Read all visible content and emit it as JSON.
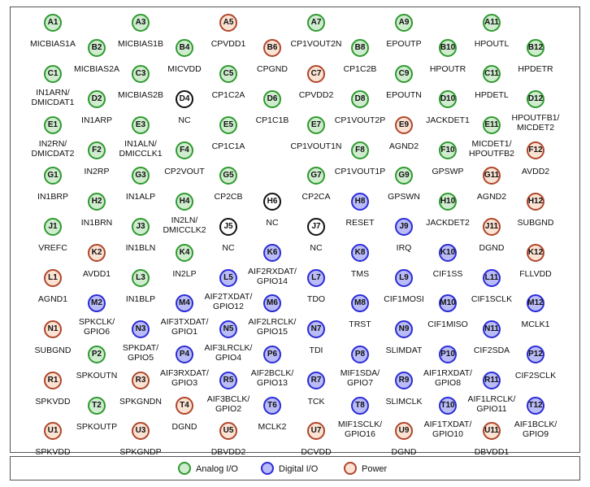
{
  "colors": {
    "analog": "#2e9a2e",
    "digital": "#2b2bd8",
    "power": "#b0452a",
    "nc": "#111111"
  },
  "legend": {
    "analog": "Analog I/O",
    "digital": "Digital I/O",
    "power": "Power"
  },
  "rows": [
    {
      "balls": [
        {
          "id": "A1",
          "type": "analog",
          "label": "MICBIAS1A"
        },
        {
          "id": "A3",
          "type": "analog",
          "label": "MICBIAS1B"
        },
        {
          "id": "A5",
          "type": "power",
          "label": "CPVDD1"
        },
        {
          "id": "A7",
          "type": "analog",
          "label": "CP1VOUT2N"
        },
        {
          "id": "A9",
          "type": "analog",
          "label": "EPOUTP"
        },
        {
          "id": "A11",
          "type": "analog",
          "label": "HPOUTL"
        }
      ]
    },
    {
      "balls": [
        {
          "id": "B2",
          "type": "analog",
          "label": "MICBIAS2A"
        },
        {
          "id": "B4",
          "type": "analog",
          "label": "MICVDD"
        },
        {
          "id": "B6",
          "type": "power",
          "label": "CPGND"
        },
        {
          "id": "B8",
          "type": "analog",
          "label": "CP1C2B"
        },
        {
          "id": "B10",
          "type": "analog",
          "label": "HPOUTR"
        },
        {
          "id": "B12",
          "type": "analog",
          "label": "HPDETR"
        }
      ]
    },
    {
      "balls": [
        {
          "id": "C1",
          "type": "analog",
          "label": "IN1ARN/\nDMICDAT1"
        },
        {
          "id": "C3",
          "type": "analog",
          "label": "MICBIAS2B"
        },
        {
          "id": "C5",
          "type": "analog",
          "label": "CP1C2A"
        },
        {
          "id": "C7",
          "type": "power",
          "label": "CPVDD2"
        },
        {
          "id": "C9",
          "type": "analog",
          "label": "EPOUTN"
        },
        {
          "id": "C11",
          "type": "analog",
          "label": "HPDETL"
        }
      ]
    },
    {
      "balls": [
        {
          "id": "D2",
          "type": "analog",
          "label": "IN1ARP"
        },
        {
          "id": "D4",
          "type": "nc",
          "label": "NC"
        },
        {
          "id": "D6",
          "type": "analog",
          "label": "CP1C1B"
        },
        {
          "id": "D8",
          "type": "analog",
          "label": "CP1VOUT2P"
        },
        {
          "id": "D10",
          "type": "analog",
          "label": "JACKDET1"
        },
        {
          "id": "D12",
          "type": "analog",
          "label": "HPOUTFB1/\nMICDET2"
        }
      ]
    },
    {
      "balls": [
        {
          "id": "E1",
          "type": "analog",
          "label": "IN2RN/\nDMICDAT2"
        },
        {
          "id": "E3",
          "type": "analog",
          "label": "IN1ALN/\nDMICCLK1"
        },
        {
          "id": "E5",
          "type": "analog",
          "label": "CP1C1A"
        },
        {
          "id": "E7",
          "type": "analog",
          "label": "CP1VOUT1N"
        },
        {
          "id": "E9",
          "type": "power",
          "label": "AGND2"
        },
        {
          "id": "E11",
          "type": "analog",
          "label": "MICDET1/\nHPOUTFB2"
        }
      ]
    },
    {
      "balls": [
        {
          "id": "F2",
          "type": "analog",
          "label": "IN2RP"
        },
        {
          "id": "F4",
          "type": "analog",
          "label": "CP2VOUT"
        },
        {
          "id": "F8",
          "type": "analog",
          "label": "CP1VOUT1P"
        },
        {
          "id": "F10",
          "type": "analog",
          "label": "GPSWP"
        },
        {
          "id": "F12",
          "type": "power",
          "label": "AVDD2"
        }
      ]
    },
    {
      "balls": [
        {
          "id": "G1",
          "type": "analog",
          "label": "IN1BRP"
        },
        {
          "id": "G3",
          "type": "analog",
          "label": "IN1ALP"
        },
        {
          "id": "G5",
          "type": "analog",
          "label": "CP2CB"
        },
        {
          "id": "G7",
          "type": "analog",
          "label": "CP2CA"
        },
        {
          "id": "G9",
          "type": "analog",
          "label": "GPSWN"
        },
        {
          "id": "G11",
          "type": "power",
          "label": "AGND2"
        }
      ]
    },
    {
      "balls": [
        {
          "id": "H2",
          "type": "analog",
          "label": "IN1BRN"
        },
        {
          "id": "H4",
          "type": "analog",
          "label": "IN2LN/\nDMICCLK2"
        },
        {
          "id": "H6",
          "type": "nc",
          "label": "NC"
        },
        {
          "id": "H8",
          "type": "digital",
          "label": "RESET"
        },
        {
          "id": "H10",
          "type": "analog",
          "label": "JACKDET2"
        },
        {
          "id": "H12",
          "type": "power",
          "label": "SUBGND"
        }
      ]
    },
    {
      "balls": [
        {
          "id": "J1",
          "type": "analog",
          "label": "VREFC"
        },
        {
          "id": "J3",
          "type": "analog",
          "label": "IN1BLN"
        },
        {
          "id": "J5",
          "type": "nc",
          "label": "NC"
        },
        {
          "id": "J7",
          "type": "nc",
          "label": "NC"
        },
        {
          "id": "J9",
          "type": "digital",
          "label": "IRQ"
        },
        {
          "id": "J11",
          "type": "power",
          "label": "DGND"
        }
      ]
    },
    {
      "balls": [
        {
          "id": "K2",
          "type": "power",
          "label": "AVDD1"
        },
        {
          "id": "K4",
          "type": "analog",
          "label": "IN2LP"
        },
        {
          "id": "K6",
          "type": "digital",
          "label": "AIF2RXDAT/\nGPIO14"
        },
        {
          "id": "K8",
          "type": "digital",
          "label": "TMS"
        },
        {
          "id": "K10",
          "type": "digital",
          "label": "CIF1SS"
        },
        {
          "id": "K12",
          "type": "power",
          "label": "FLLVDD"
        }
      ]
    },
    {
      "balls": [
        {
          "id": "L1",
          "type": "power",
          "label": "AGND1"
        },
        {
          "id": "L3",
          "type": "analog",
          "label": "IN1BLP"
        },
        {
          "id": "L5",
          "type": "digital",
          "label": "AIF2TXDAT/\nGPIO12"
        },
        {
          "id": "L7",
          "type": "digital",
          "label": "TDO"
        },
        {
          "id": "L9",
          "type": "digital",
          "label": "CIF1MOSI"
        },
        {
          "id": "L11",
          "type": "digital",
          "label": "CIF1SCLK"
        }
      ]
    },
    {
      "balls": [
        {
          "id": "M2",
          "type": "digital",
          "label": "SPKCLK/\nGPIO6"
        },
        {
          "id": "M4",
          "type": "digital",
          "label": "AIF3TXDAT/\nGPIO1"
        },
        {
          "id": "M6",
          "type": "digital",
          "label": "AIF2LRCLK/\nGPIO15"
        },
        {
          "id": "M8",
          "type": "digital",
          "label": "TRST"
        },
        {
          "id": "M10",
          "type": "digital",
          "label": "CIF1MISO"
        },
        {
          "id": "M12",
          "type": "digital",
          "label": "MCLK1"
        }
      ]
    },
    {
      "balls": [
        {
          "id": "N1",
          "type": "power",
          "label": "SUBGND"
        },
        {
          "id": "N3",
          "type": "digital",
          "label": "SPKDAT/\nGPIO5"
        },
        {
          "id": "N5",
          "type": "digital",
          "label": "AIF3LRCLK/\nGPIO4"
        },
        {
          "id": "N7",
          "type": "digital",
          "label": "TDI"
        },
        {
          "id": "N9",
          "type": "digital",
          "label": "SLIMDAT"
        },
        {
          "id": "N11",
          "type": "digital",
          "label": "CIF2SDA"
        }
      ]
    },
    {
      "balls": [
        {
          "id": "P2",
          "type": "analog",
          "label": "SPKOUTN"
        },
        {
          "id": "P4",
          "type": "digital",
          "label": "AIF3RXDAT/\nGPIO3"
        },
        {
          "id": "P6",
          "type": "digital",
          "label": "AIF2BCLK/\nGPIO13"
        },
        {
          "id": "P8",
          "type": "digital",
          "label": "MIF1SDA/\nGPIO7"
        },
        {
          "id": "P10",
          "type": "digital",
          "label": "AIF1RXDAT/\nGPIO8"
        },
        {
          "id": "P12",
          "type": "digital",
          "label": "CIF2SCLK"
        }
      ]
    },
    {
      "balls": [
        {
          "id": "R1",
          "type": "power",
          "label": "SPKVDD"
        },
        {
          "id": "R3",
          "type": "power",
          "label": "SPKGNDN"
        },
        {
          "id": "R5",
          "type": "digital",
          "label": "AIF3BCLK/\nGPIO2"
        },
        {
          "id": "R7",
          "type": "digital",
          "label": "TCK"
        },
        {
          "id": "R9",
          "type": "digital",
          "label": "SLIMCLK"
        },
        {
          "id": "R11",
          "type": "digital",
          "label": "AIF1LRCLK/\nGPIO11"
        }
      ]
    },
    {
      "balls": [
        {
          "id": "T2",
          "type": "analog",
          "label": "SPKOUTP"
        },
        {
          "id": "T4",
          "type": "power",
          "label": "DGND"
        },
        {
          "id": "T6",
          "type": "digital",
          "label": "MCLK2"
        },
        {
          "id": "T8",
          "type": "digital",
          "label": "MIF1SCLK/\nGPIO16"
        },
        {
          "id": "T10",
          "type": "digital",
          "label": "AIF1TXDAT/\nGPIO10"
        },
        {
          "id": "T12",
          "type": "digital",
          "label": "AIF1BCLK/\nGPIO9"
        }
      ]
    },
    {
      "balls": [
        {
          "id": "U1",
          "type": "power",
          "label": "SPKVDD"
        },
        {
          "id": "U3",
          "type": "power",
          "label": "SPKGNDP"
        },
        {
          "id": "U5",
          "type": "power",
          "label": "DBVDD2"
        },
        {
          "id": "U7",
          "type": "power",
          "label": "DCVDD"
        },
        {
          "id": "U9",
          "type": "power",
          "label": "DGND"
        },
        {
          "id": "U11",
          "type": "power",
          "label": "DBVDD1"
        }
      ]
    }
  ]
}
